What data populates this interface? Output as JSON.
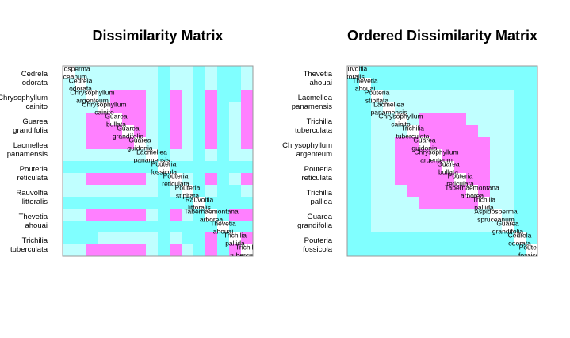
{
  "chart_data": [
    {
      "type": "heatmap",
      "title": "Dissimilarity Matrix",
      "row_labels": [
        [
          "Cedrela",
          "odorata"
        ],
        [
          "Chrysophyllum",
          "cainito"
        ],
        [
          "Guarea",
          "grandifolia"
        ],
        [
          "Lacmellea",
          "panamensis"
        ],
        [
          "Pouteria",
          "reticulata"
        ],
        [
          "Rauvolfia",
          "littoralis"
        ],
        [
          "Thevetia",
          "ahouai"
        ],
        [
          "Trichilia",
          "tuberculata"
        ]
      ],
      "diagonal_labels": [
        [
          "Aspidosperma",
          "spruceanum"
        ],
        [
          "Cedrela",
          "odorata"
        ],
        [
          "Chrysophyllum",
          "argenteum"
        ],
        [
          "Chrysophyllum",
          "cainito"
        ],
        [
          "Guarea",
          "bullata"
        ],
        [
          "Guarea",
          "grandifolia"
        ],
        [
          "Guarea",
          "guidonia"
        ],
        [
          "Lacmellea",
          "panamensis"
        ],
        [
          "Pouteria",
          "fossicola"
        ],
        [
          "Pouteria",
          "reticulata"
        ],
        [
          "Pouteria",
          "stipitata"
        ],
        [
          "Rauvolfia",
          "littoralis"
        ],
        [
          "Tabernaemontana",
          "arborea"
        ],
        [
          "Thevetia",
          "ahouai"
        ],
        [
          "Trichilia",
          "pallida"
        ],
        [
          "Trichilia",
          "tuberculata"
        ]
      ],
      "grid": [
        [
          0,
          2,
          2,
          2,
          2,
          2,
          2,
          2,
          1,
          2,
          2,
          1,
          2,
          1,
          1,
          2
        ],
        [
          2,
          0,
          2,
          2,
          2,
          2,
          2,
          2,
          1,
          2,
          2,
          1,
          2,
          1,
          1,
          2
        ],
        [
          2,
          2,
          0,
          2,
          3,
          3,
          3,
          2,
          1,
          3,
          2,
          1,
          3,
          1,
          1,
          3
        ],
        [
          2,
          2,
          2,
          0,
          3,
          3,
          3,
          2,
          1,
          3,
          2,
          1,
          3,
          1,
          2,
          3
        ],
        [
          2,
          2,
          3,
          3,
          0,
          3,
          3,
          2,
          1,
          3,
          2,
          1,
          3,
          1,
          2,
          3
        ],
        [
          2,
          2,
          3,
          3,
          3,
          0,
          3,
          2,
          1,
          3,
          2,
          1,
          3,
          1,
          2,
          3
        ],
        [
          2,
          2,
          3,
          3,
          3,
          3,
          0,
          2,
          1,
          3,
          2,
          1,
          3,
          1,
          2,
          3
        ],
        [
          2,
          2,
          2,
          2,
          2,
          2,
          2,
          0,
          1,
          2,
          2,
          1,
          2,
          1,
          2,
          2
        ],
        [
          1,
          1,
          1,
          1,
          1,
          1,
          1,
          1,
          0,
          1,
          1,
          1,
          1,
          1,
          1,
          1
        ],
        [
          2,
          2,
          3,
          3,
          3,
          3,
          3,
          2,
          1,
          0,
          2,
          1,
          3,
          1,
          2,
          3
        ],
        [
          2,
          2,
          2,
          2,
          2,
          2,
          2,
          2,
          1,
          2,
          0,
          1,
          2,
          1,
          1,
          2
        ],
        [
          1,
          1,
          1,
          1,
          1,
          1,
          1,
          1,
          1,
          1,
          1,
          0,
          1,
          1,
          1,
          1
        ],
        [
          2,
          2,
          3,
          3,
          3,
          3,
          3,
          2,
          1,
          3,
          2,
          1,
          0,
          1,
          3,
          3
        ],
        [
          1,
          1,
          1,
          1,
          1,
          1,
          1,
          1,
          1,
          1,
          1,
          1,
          1,
          0,
          1,
          1
        ],
        [
          1,
          1,
          1,
          2,
          2,
          2,
          2,
          2,
          1,
          2,
          1,
          1,
          3,
          1,
          0,
          3
        ],
        [
          2,
          2,
          3,
          3,
          3,
          3,
          3,
          2,
          1,
          3,
          2,
          1,
          3,
          1,
          3,
          0
        ]
      ]
    },
    {
      "type": "heatmap",
      "title": "Ordered Dissimilarity Matrix",
      "row_labels": [
        [
          "Thevetia",
          "ahouai"
        ],
        [
          "Lacmellea",
          "panamensis"
        ],
        [
          "Trichilia",
          "tuberculata"
        ],
        [
          "Chrysophyllum",
          "argenteum"
        ],
        [
          "Pouteria",
          "reticulata"
        ],
        [
          "Trichilia",
          "pallida"
        ],
        [
          "Guarea",
          "grandifolia"
        ],
        [
          "Pouteria",
          "fossicola"
        ]
      ],
      "diagonal_labels": [
        [
          "Rauvolfia",
          "littoralis"
        ],
        [
          "Thevetia",
          "ahouai"
        ],
        [
          "Pouteria",
          "stipitata"
        ],
        [
          "Lacmellea",
          "panamensis"
        ],
        [
          "Chrysophyllum",
          "cainito"
        ],
        [
          "Trichilia",
          "tuberculata"
        ],
        [
          "Guarea",
          "guidonia"
        ],
        [
          "Chrysophyllum",
          "argenteum"
        ],
        [
          "Guarea",
          "bullata"
        ],
        [
          "Pouteria",
          "reticulata"
        ],
        [
          "Tabernaemontana",
          "arborea"
        ],
        [
          "Trichilia",
          "pallida"
        ],
        [
          "Aspidosperma",
          "spruceanum"
        ],
        [
          "Guarea",
          "grandifolia"
        ],
        [
          "Cedrela",
          "odorata"
        ],
        [
          "Pouteria",
          "fossicola"
        ]
      ],
      "grid": [
        [
          0,
          1,
          1,
          1,
          1,
          1,
          1,
          1,
          1,
          1,
          1,
          1,
          1,
          1,
          1,
          1
        ],
        [
          1,
          0,
          1,
          1,
          1,
          1,
          1,
          1,
          1,
          1,
          1,
          1,
          1,
          1,
          1,
          1
        ],
        [
          1,
          1,
          0,
          2,
          2,
          2,
          2,
          2,
          2,
          2,
          2,
          2,
          2,
          2,
          1,
          1
        ],
        [
          1,
          1,
          2,
          0,
          2,
          2,
          2,
          2,
          2,
          2,
          2,
          2,
          2,
          2,
          1,
          1
        ],
        [
          1,
          1,
          2,
          2,
          0,
          2,
          3,
          3,
          3,
          3,
          2,
          2,
          2,
          2,
          1,
          1
        ],
        [
          1,
          1,
          2,
          2,
          2,
          0,
          3,
          3,
          3,
          3,
          3,
          2,
          2,
          2,
          1,
          1
        ],
        [
          1,
          1,
          2,
          2,
          3,
          3,
          0,
          3,
          3,
          3,
          3,
          3,
          2,
          2,
          1,
          1
        ],
        [
          1,
          1,
          2,
          2,
          3,
          3,
          3,
          0,
          3,
          3,
          3,
          3,
          2,
          2,
          1,
          1
        ],
        [
          1,
          1,
          2,
          2,
          3,
          3,
          3,
          3,
          0,
          3,
          3,
          3,
          2,
          2,
          1,
          1
        ],
        [
          1,
          1,
          2,
          2,
          3,
          3,
          3,
          3,
          3,
          0,
          3,
          3,
          2,
          2,
          1,
          1
        ],
        [
          1,
          1,
          2,
          2,
          2,
          3,
          3,
          3,
          3,
          3,
          0,
          3,
          2,
          2,
          1,
          1
        ],
        [
          1,
          1,
          2,
          2,
          2,
          2,
          3,
          3,
          3,
          3,
          3,
          0,
          2,
          2,
          1,
          1
        ],
        [
          1,
          1,
          2,
          2,
          2,
          2,
          2,
          2,
          2,
          2,
          2,
          2,
          0,
          2,
          1,
          1
        ],
        [
          1,
          1,
          2,
          2,
          2,
          2,
          2,
          2,
          2,
          2,
          2,
          2,
          2,
          0,
          1,
          1
        ],
        [
          1,
          1,
          1,
          1,
          1,
          1,
          1,
          1,
          1,
          1,
          1,
          1,
          1,
          1,
          0,
          1
        ],
        [
          1,
          1,
          1,
          1,
          1,
          1,
          1,
          1,
          1,
          1,
          1,
          1,
          1,
          1,
          1,
          0
        ]
      ]
    }
  ],
  "palette": {
    "0": "#ffffff",
    "1": "#80ffff",
    "2": "#c0ffff",
    "3": "#ff80ff",
    "4": "#ffc0ff"
  },
  "colors": {
    "border": "#999999",
    "text": "#000000"
  }
}
